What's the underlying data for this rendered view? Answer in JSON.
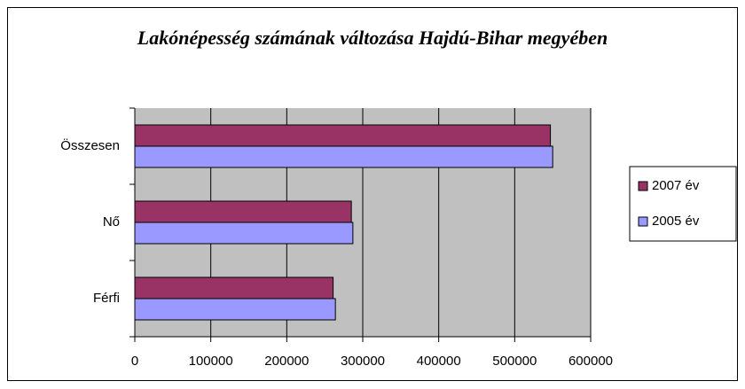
{
  "chart_data": {
    "type": "barh",
    "title": "Lakónépesség számának változása Hajdú-Bihar megyében",
    "categories": [
      "Férfi",
      "Nő",
      "Összesen"
    ],
    "series": [
      {
        "name": "2007 év",
        "color": "#993366",
        "values": [
          261000,
          285000,
          547000
        ]
      },
      {
        "name": "2005 év",
        "color": "#9999ff",
        "values": [
          264000,
          287000,
          550000
        ]
      }
    ],
    "xlim": [
      0,
      600000
    ],
    "xticks": [
      0,
      100000,
      200000,
      300000,
      400000,
      500000,
      600000
    ],
    "grid": true,
    "legend": "right",
    "plot_background": "#c0c0c0"
  }
}
